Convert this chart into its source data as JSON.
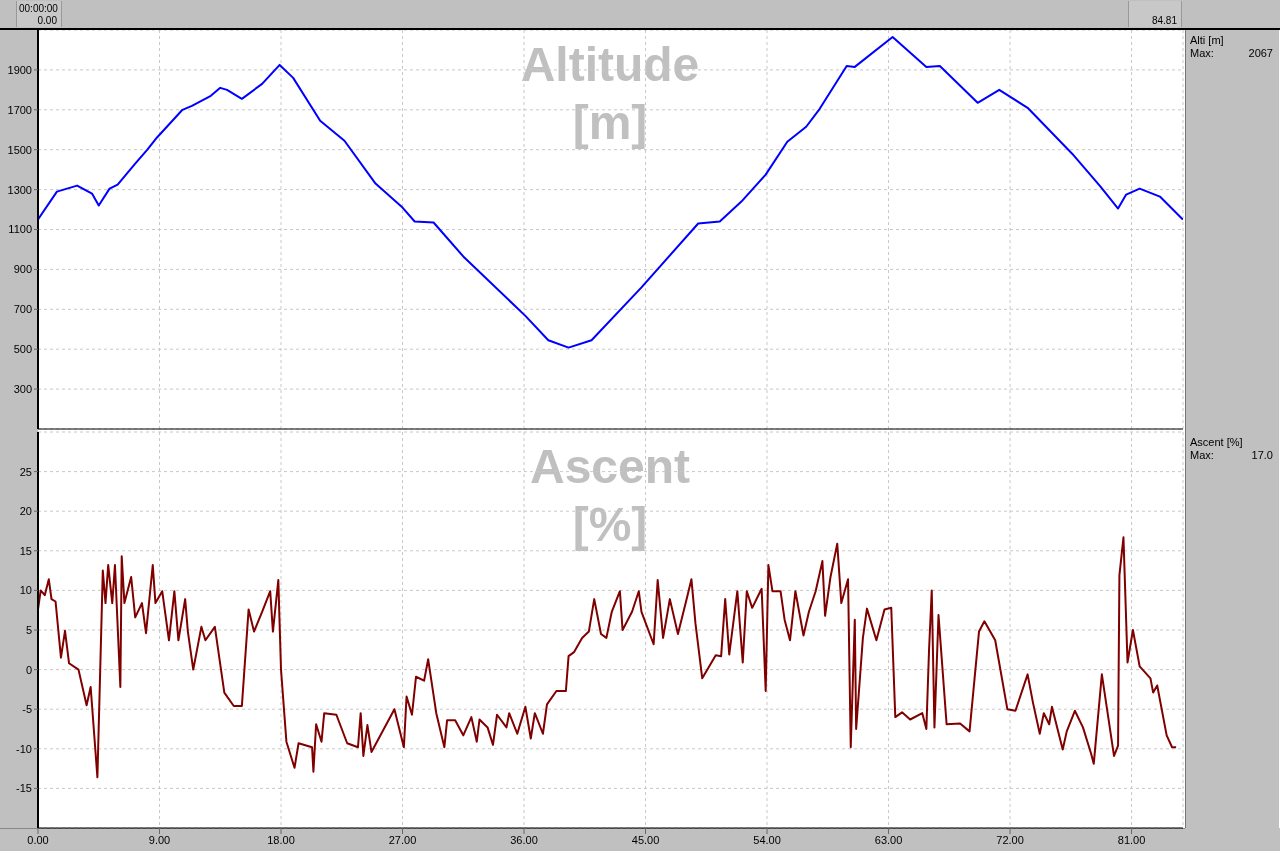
{
  "chart_data": [
    {
      "type": "line",
      "title": "Altitude [m]",
      "annotations": [
        "Alti [m]",
        "Max:",
        "2067",
        "00:00:00",
        "0.00",
        "84.81"
      ],
      "x": [
        0,
        1.4,
        2.9,
        4.0,
        4.5,
        5.3,
        5.9,
        7.2,
        8.1,
        8.8,
        10.7,
        11.4,
        12.8,
        13.5,
        14.0,
        15.1,
        16.6,
        17.9,
        18.9,
        20.9,
        22.7,
        25.0,
        27.0,
        27.9,
        29.3,
        31.5,
        36.1,
        37.8,
        39.3,
        41.0,
        44.7,
        48.9,
        50.5,
        52.1,
        53.9,
        55.5,
        56.9,
        57.9,
        59.9,
        60.5,
        63.3,
        65.8,
        66.8,
        69.6,
        71.2,
        73.3,
        76.6,
        78.7,
        80.0,
        80.6,
        81.6,
        83.1,
        84.8
      ],
      "series": [
        {
          "color": "#0000ff",
          "values": [
            1150,
            1290,
            1320,
            1280,
            1220,
            1305,
            1325,
            1430,
            1500,
            1560,
            1700,
            1720,
            1770,
            1810,
            1800,
            1755,
            1830,
            1925,
            1860,
            1645,
            1545,
            1330,
            1210,
            1140,
            1135,
            965,
            667,
            545,
            508,
            545,
            810,
            1130,
            1140,
            1240,
            1375,
            1540,
            1615,
            1705,
            1920,
            1915,
            2065,
            1915,
            1920,
            1735,
            1800,
            1710,
            1480,
            1315,
            1205,
            1275,
            1305,
            1265,
            1150
          ]
        }
      ],
      "xlim": [
        0,
        84.81
      ],
      "xticks": [
        0,
        9,
        18,
        27,
        36,
        45,
        54,
        63,
        72,
        81
      ],
      "ylim": [
        100,
        2100
      ],
      "yticks": [
        300,
        500,
        700,
        900,
        1100,
        1300,
        1500,
        1700,
        1900
      ],
      "tick_labels": "y",
      "grid": true,
      "marker": "none",
      "line_style": "solid"
    },
    {
      "type": "line",
      "title": "Ascent [%]",
      "annotations": [
        "Ascent [%]",
        "Max:",
        "17.0"
      ],
      "x": [
        0.0,
        0.2,
        0.5,
        0.8,
        1.0,
        1.3,
        1.7,
        2.0,
        2.3,
        3.0,
        3.6,
        3.9,
        4.4,
        4.8,
        5.0,
        5.2,
        5.5,
        5.7,
        6.1,
        6.2,
        6.4,
        6.9,
        7.2,
        7.7,
        8.0,
        8.5,
        8.7,
        9.2,
        9.7,
        10.1,
        10.4,
        10.9,
        11.1,
        11.5,
        12.1,
        12.4,
        13.1,
        13.8,
        14.5,
        15.1,
        15.6,
        16.0,
        16.6,
        17.2,
        17.4,
        17.8,
        18.0,
        18.4,
        19.0,
        19.3,
        20.3,
        20.4,
        20.6,
        21.0,
        21.2,
        22.1,
        22.9,
        23.7,
        23.9,
        24.1,
        24.4,
        24.7,
        26.4,
        27.1,
        27.3,
        27.7,
        28.0,
        28.6,
        28.9,
        29.5,
        30.1,
        30.3,
        30.9,
        31.5,
        32.1,
        32.5,
        32.7,
        33.3,
        33.7,
        34.0,
        34.7,
        34.9,
        35.5,
        36.1,
        36.5,
        36.8,
        37.4,
        37.7,
        38.4,
        39.1,
        39.3,
        39.7,
        40.3,
        40.8,
        41.2,
        41.7,
        42.1,
        42.5,
        43.1,
        43.3,
        44.0,
        44.5,
        44.7,
        45.6,
        45.9,
        46.3,
        46.8,
        47.4,
        48.0,
        48.4,
        48.7,
        49.2,
        50.2,
        50.6,
        50.9,
        51.2,
        51.8,
        52.2,
        52.5,
        52.9,
        53.6,
        53.9,
        54.1,
        54.4,
        55.0,
        55.3,
        55.7,
        56.1,
        56.7,
        57.1,
        57.6,
        58.1,
        58.3,
        58.7,
        59.2,
        59.5,
        60.0,
        60.2,
        60.5,
        60.6,
        61.1,
        61.4,
        62.1,
        62.7,
        63.2,
        63.5,
        64.0,
        64.6,
        65.5,
        65.8,
        66.0,
        66.2,
        66.4,
        66.7,
        67.3,
        68.3,
        69.0,
        69.7,
        70.1,
        70.9,
        71.8,
        72.4,
        73.3,
        73.7,
        74.2,
        74.5,
        74.9,
        75.1,
        75.9,
        76.2,
        76.8,
        77.4,
        78.0,
        78.2,
        78.8,
        79.7,
        80.0,
        80.1,
        80.4,
        80.7,
        81.1,
        81.6,
        82.4,
        82.6,
        82.9,
        83.6,
        84.0,
        84.3
      ],
      "series": [
        {
          "color": "#800000",
          "values": [
            7.6,
            10,
            9.4,
            11.4,
            8.9,
            8.6,
            1.5,
            4.9,
            0.8,
            0,
            -4.5,
            -2.2,
            -13.6,
            12.5,
            8.4,
            13.2,
            8.4,
            13.2,
            -2.2,
            14.3,
            8.4,
            11.7,
            6.6,
            8.4,
            4.6,
            13.2,
            8.4,
            9.9,
            3.7,
            9.9,
            3.7,
            8.9,
            4.8,
            0,
            5.4,
            3.7,
            5.4,
            -2.9,
            -4.6,
            -4.6,
            7.6,
            4.8,
            7.3,
            9.9,
            4.8,
            11.3,
            0,
            -9.1,
            -12.4,
            -9.3,
            -9.8,
            -12.9,
            -6.9,
            -9.1,
            -5.5,
            -5.7,
            -9.3,
            -9.8,
            -5.5,
            -10.9,
            -7.0,
            -10.4,
            -5.0,
            -9.8,
            -3.4,
            -5.7,
            -0.9,
            -1.4,
            1.3,
            -5.5,
            -9.8,
            -6.4,
            -6.4,
            -8.3,
            -6.0,
            -9.1,
            -6.3,
            -7.3,
            -9.5,
            -5.7,
            -7.3,
            -5.5,
            -8.1,
            -4.7,
            -8.7,
            -5.5,
            -8.1,
            -4.4,
            -2.7,
            -2.7,
            1.7,
            2.2,
            4.0,
            4.8,
            8.9,
            4.5,
            4.0,
            7.3,
            9.9,
            5.0,
            7.3,
            9.9,
            7.3,
            3.2,
            11.3,
            4.0,
            8.9,
            4.5,
            8.6,
            11.4,
            5.8,
            -1.1,
            1.8,
            1.7,
            8.9,
            1.9,
            9.9,
            0.9,
            9.9,
            7.8,
            10.2,
            -2.7,
            13.2,
            9.9,
            9.9,
            6.3,
            3.7,
            9.9,
            4.3,
            7.3,
            9.9,
            13.7,
            6.8,
            11.7,
            15.9,
            8.4,
            11.4,
            -9.8,
            6.3,
            -7.5,
            4.0,
            7.7,
            3.7,
            7.6,
            7.8,
            -6.0,
            -5.4,
            -6.3,
            -5.5,
            -7.5,
            2.5,
            10.0,
            -7.3,
            6.9,
            -6.9,
            -6.8,
            -7.8,
            4.8,
            6.1,
            3.7,
            -5.0,
            -5.2,
            -0.6,
            -4.2,
            -8.1,
            -5.5,
            -6.9,
            -4.7,
            -10.1,
            -7.8,
            -5.2,
            -7.3,
            -10.6,
            -11.9,
            -0.6,
            -10.9,
            -9.6,
            11.9,
            16.7,
            0.9,
            5.0,
            0.4,
            -1.1,
            -2.9,
            -2.0,
            -8.3,
            -9.8,
            -9.8
          ]
        }
      ],
      "xlim": [
        0,
        84.81
      ],
      "xticks": [
        {
          "value": 0,
          "label": "0.00"
        },
        {
          "value": 9,
          "label": "9.00"
        },
        {
          "value": 18,
          "label": "18.00"
        },
        {
          "value": 27,
          "label": "27.00"
        },
        {
          "value": 36,
          "label": "36.00"
        },
        {
          "value": 45,
          "label": "45.00"
        },
        {
          "value": 54,
          "label": "54.00"
        },
        {
          "value": 63,
          "label": "63.00"
        },
        {
          "value": 72,
          "label": "72.00"
        },
        {
          "value": 81,
          "label": "81.00"
        }
      ],
      "ylim": [
        -20,
        30
      ],
      "yticks": [
        -15,
        -10,
        -5,
        0,
        5,
        10,
        15,
        20,
        25
      ],
      "grid": true,
      "marker": "none",
      "line_style": "solid"
    }
  ]
}
